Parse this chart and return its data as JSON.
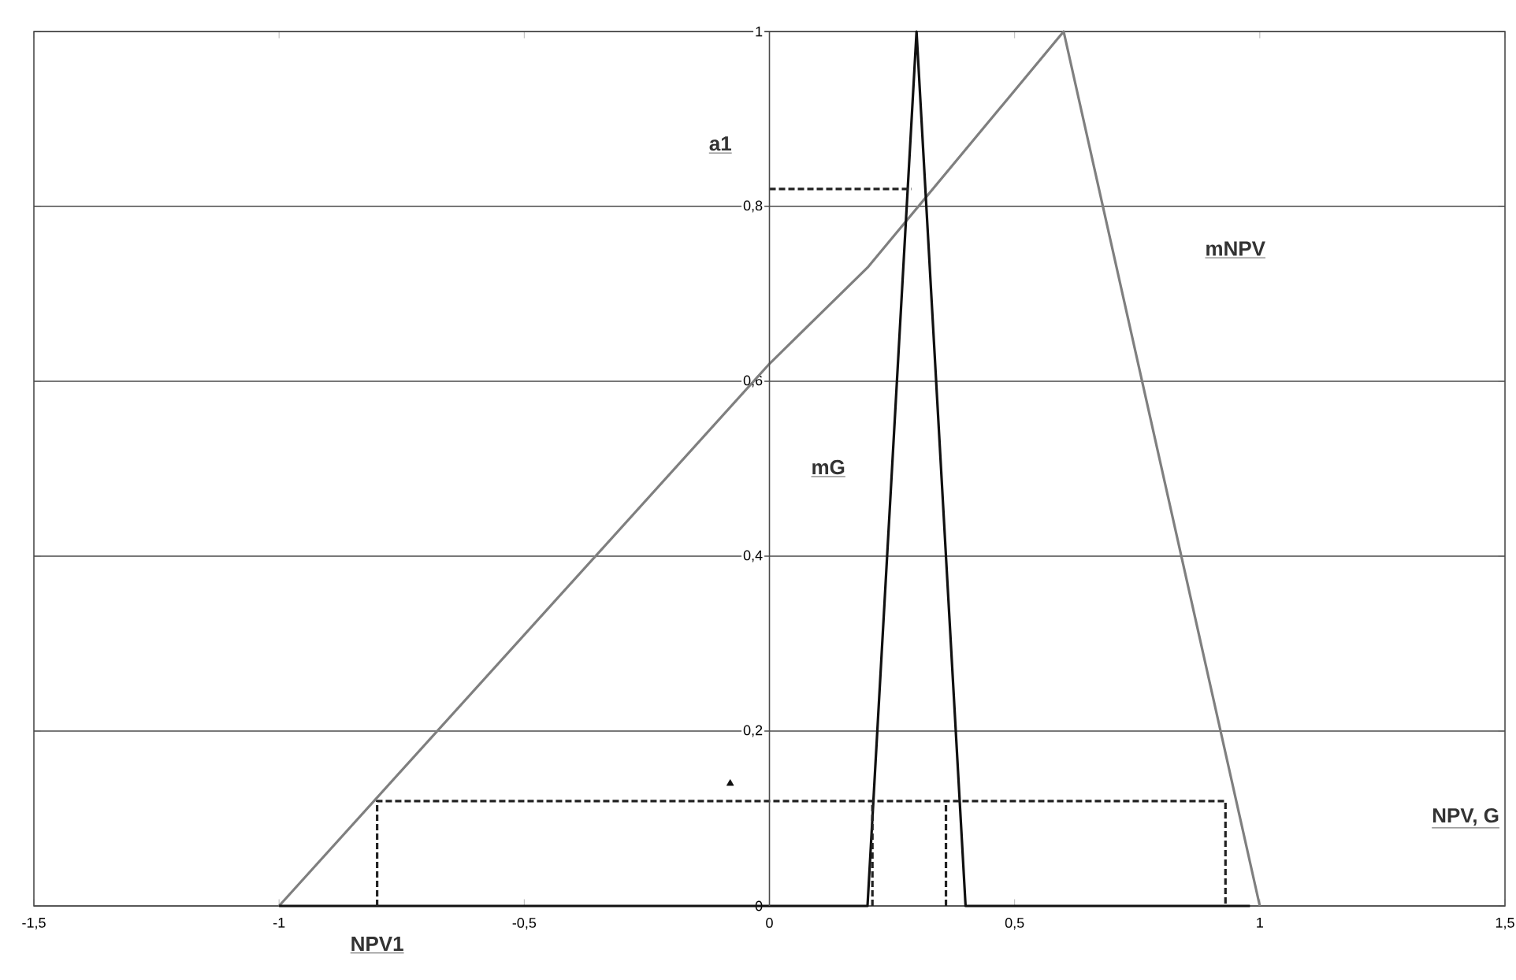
{
  "chart_data": {
    "type": "line",
    "xlabel": "NPV, G",
    "xlim": [
      -1.5,
      1.5
    ],
    "ylim": [
      0,
      1
    ],
    "xticks": [
      {
        "value": -1.5,
        "label": "-1,5"
      },
      {
        "value": -1,
        "label": "-1"
      },
      {
        "value": -0.5,
        "label": "-0,5"
      },
      {
        "value": 0,
        "label": "0"
      },
      {
        "value": 0.5,
        "label": "0,5"
      },
      {
        "value": 1,
        "label": "1"
      },
      {
        "value": 1.5,
        "label": "1,5"
      }
    ],
    "yticks": [
      0,
      {
        "value": 0.2,
        "label": "0,2"
      },
      {
        "value": 0.4,
        "label": "0,4"
      },
      {
        "value": 0.6,
        "label": "0,6"
      },
      {
        "value": 0.8,
        "label": "0,8"
      },
      1
    ],
    "grid": "y",
    "series": [
      {
        "x": [
          -1,
          0,
          0.2,
          0.6,
          1
        ],
        "values": [
          0,
          0.62,
          0.73,
          1,
          0
        ],
        "color": "#7f7f7f",
        "line_style": "solid"
      },
      {
        "x": [
          -1,
          0.2,
          0.3,
          0.4,
          0.98
        ],
        "values": [
          0,
          0,
          1,
          0,
          0
        ],
        "color": "#111111",
        "line_style": "solid"
      },
      {
        "x": [
          -0.8,
          -0.8,
          0.93,
          0.93
        ],
        "values": [
          0,
          0.12,
          0.12,
          0
        ],
        "color": "#222222",
        "line_style": "dashed"
      },
      {
        "x": [
          0.21,
          0.21
        ],
        "values": [
          0,
          0.12
        ],
        "color": "#222222",
        "line_style": "dashed"
      },
      {
        "x": [
          0.36,
          0.36
        ],
        "values": [
          0,
          0.12
        ],
        "color": "#222222",
        "line_style": "dashed"
      },
      {
        "x": [
          0,
          0.29
        ],
        "values": [
          0.82,
          0.82
        ],
        "color": "#222222",
        "line_style": "dashed"
      },
      {
        "type": "scatter",
        "x": [
          -0.08
        ],
        "values": [
          0.14
        ],
        "color": "#111111",
        "marker": "triangle"
      }
    ],
    "annotations": [
      "a1",
      "mNPV",
      "mG",
      {
        "text": "NPV1",
        "x": -0.8,
        "y": 0
      }
    ]
  }
}
